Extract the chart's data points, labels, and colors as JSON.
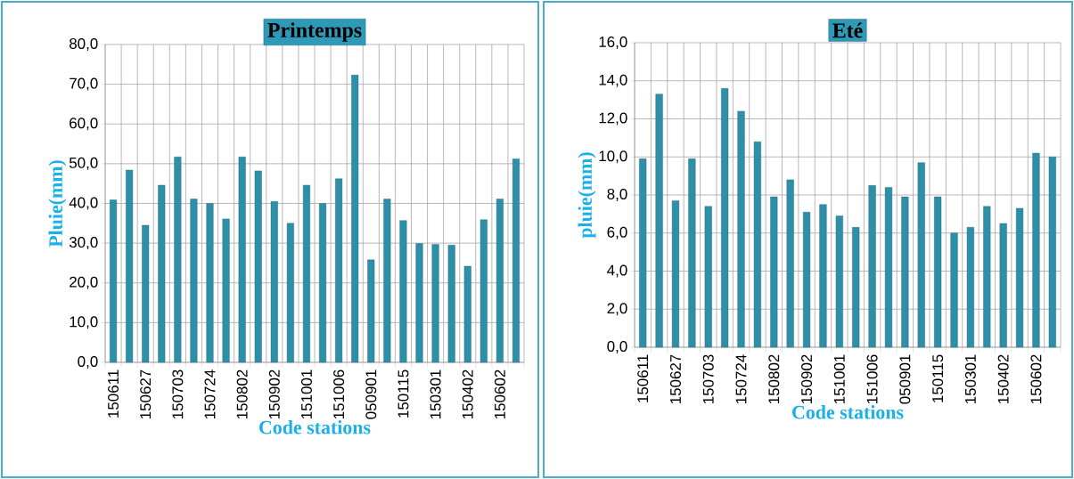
{
  "chart_data": [
    {
      "type": "bar",
      "title": "Printemps",
      "xlabel": "Code stations",
      "ylabel": "Pluie(mm)",
      "categories": [
        "150611",
        null,
        "150627",
        null,
        "150703",
        null,
        "150724",
        null,
        "150802",
        null,
        "150902",
        null,
        "151001",
        null,
        "151006",
        null,
        "050901",
        null,
        "150115",
        null,
        "150301",
        null,
        "150402",
        null,
        "150602",
        null
      ],
      "values": [
        40.9,
        48.4,
        34.5,
        44.6,
        51.7,
        41.1,
        40.0,
        36.1,
        51.7,
        48.2,
        40.5,
        35.0,
        44.6,
        40.0,
        46.2,
        72.3,
        25.8,
        41.1,
        35.7,
        29.9,
        29.7,
        29.5,
        24.2,
        35.9,
        41.1,
        51.2
      ],
      "color": "#2e8fa8",
      "ylim": [
        0,
        80
      ],
      "yticks": [
        {
          "value": 0,
          "label": "0,0"
        },
        {
          "value": 10,
          "label": "10,0"
        },
        {
          "value": 20,
          "label": "20,0"
        },
        {
          "value": 30,
          "label": "30,0"
        },
        {
          "value": 40,
          "label": "40,0"
        },
        {
          "value": 50,
          "label": "50,0"
        },
        {
          "value": 60,
          "label": "60,0"
        },
        {
          "value": 70,
          "label": "70,0"
        },
        {
          "value": 80,
          "label": "80,0"
        }
      ],
      "grid": true
    },
    {
      "type": "bar",
      "title": "Eté",
      "xlabel": "Code stations",
      "ylabel": "pluie(mm)",
      "categories": [
        "150611",
        null,
        "150627",
        null,
        "150703",
        null,
        "150724",
        null,
        "150802",
        null,
        "150902",
        null,
        "151001",
        null,
        "151006",
        null,
        "050901",
        null,
        "150115",
        null,
        "150301",
        null,
        "150402",
        null,
        "150602",
        null
      ],
      "values": [
        9.9,
        13.3,
        7.7,
        9.9,
        7.4,
        13.6,
        12.4,
        10.8,
        7.9,
        8.8,
        7.1,
        7.5,
        6.9,
        6.3,
        8.5,
        8.4,
        7.9,
        9.7,
        7.9,
        6.0,
        6.3,
        7.4,
        6.5,
        7.3,
        10.2,
        10.0
      ],
      "color": "#2e8fa8",
      "ylim": [
        0,
        16
      ],
      "yticks": [
        {
          "value": 0,
          "label": "0,0"
        },
        {
          "value": 2,
          "label": "2,0"
        },
        {
          "value": 4,
          "label": "4,0"
        },
        {
          "value": 6,
          "label": "6,0"
        },
        {
          "value": 8,
          "label": "8,0"
        },
        {
          "value": 10,
          "label": "10,0"
        },
        {
          "value": 12,
          "label": "12,0"
        },
        {
          "value": 14,
          "label": "14,0"
        },
        {
          "value": 16,
          "label": "16,0"
        }
      ],
      "grid": true
    }
  ]
}
